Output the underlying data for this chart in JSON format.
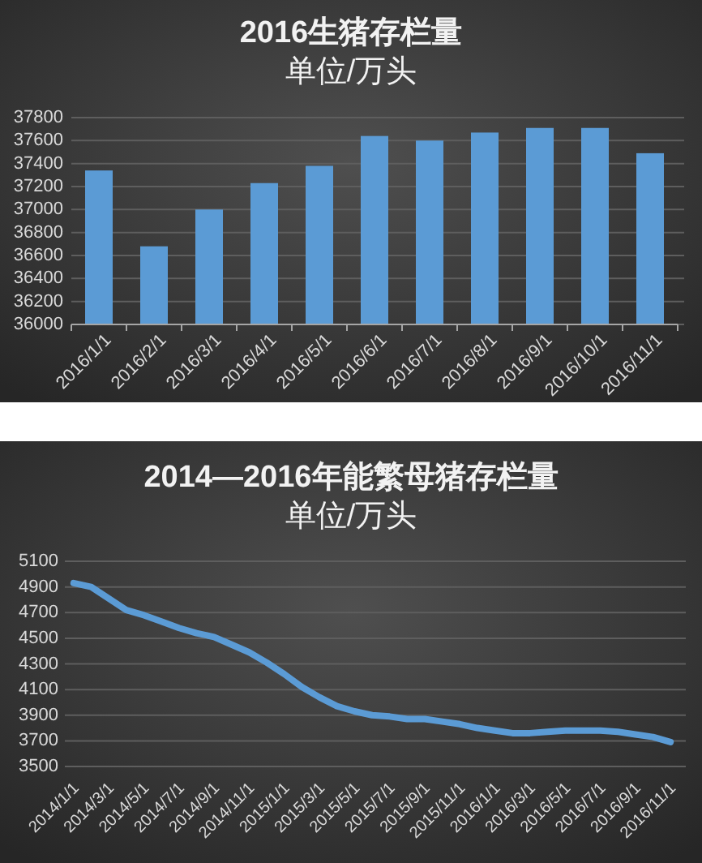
{
  "chart_data": [
    {
      "type": "bar",
      "title": "2016生猪存栏量",
      "subtitle": "单位/万头",
      "categories": [
        "2016/1/1",
        "2016/2/1",
        "2016/3/1",
        "2016/4/1",
        "2016/5/1",
        "2016/6/1",
        "2016/7/1",
        "2016/8/1",
        "2016/9/1",
        "2016/10/1",
        "2016/11/1"
      ],
      "values": [
        37340,
        36680,
        37000,
        37230,
        37380,
        37640,
        37600,
        37670,
        37710,
        37710,
        37490
      ],
      "color": "#5b9bd5",
      "ylim": [
        36000,
        37800
      ],
      "yticks": [
        36000,
        36200,
        36400,
        36600,
        36800,
        37000,
        37200,
        37400,
        37600,
        37800
      ],
      "grid": "y"
    },
    {
      "type": "line",
      "title": "2014—2016年能繁母猪存栏量",
      "subtitle": "单位/万头",
      "categories": [
        "2014/1/1",
        null,
        "2014/3/1",
        null,
        "2014/5/1",
        null,
        "2014/7/1",
        null,
        "2014/9/1",
        null,
        "2014/11/1",
        null,
        "2015/1/1",
        null,
        "2015/3/1",
        null,
        "2015/5/1",
        null,
        "2015/7/1",
        null,
        "2015/9/1",
        null,
        "2015/11/1",
        null,
        "2016/1/1",
        null,
        "2016/3/1",
        null,
        "2016/5/1",
        null,
        "2016/7/1",
        null,
        "2016/9/1",
        null,
        "2016/11/1"
      ],
      "values": [
        4930,
        4900,
        4810,
        4720,
        4680,
        4630,
        4580,
        4540,
        4510,
        4450,
        4390,
        4310,
        4220,
        4120,
        4040,
        3970,
        3930,
        3900,
        3890,
        3870,
        3870,
        3850,
        3830,
        3800,
        3780,
        3760,
        3760,
        3770,
        3780,
        3780,
        3780,
        3770,
        3750,
        3730,
        3690
      ],
      "color": "#5b9bd5",
      "ylim": [
        3500,
        5100
      ],
      "yticks": [
        3500,
        3700,
        3900,
        4100,
        4300,
        4500,
        4700,
        4900,
        5100
      ],
      "grid": "y"
    }
  ]
}
